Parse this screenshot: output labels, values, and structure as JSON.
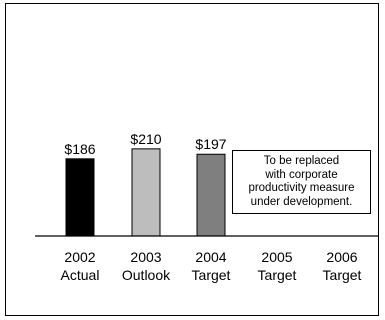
{
  "chart_data": {
    "type": "bar",
    "categories": [
      {
        "line1": "2002",
        "line2": "Actual"
      },
      {
        "line1": "2003",
        "line2": "Outlook"
      },
      {
        "line1": "2004",
        "line2": "Target"
      },
      {
        "line1": "2005",
        "line2": "Target"
      },
      {
        "line1": "2006",
        "line2": "Target"
      }
    ],
    "values": [
      186,
      210,
      197,
      null,
      null
    ],
    "value_labels": [
      "$186",
      "$210",
      "$197",
      "",
      ""
    ],
    "bar_colors": [
      "#000000",
      "#bdbdbd",
      "#7f7f7f",
      "",
      ""
    ],
    "ylim": [
      0,
      300
    ],
    "grid": false,
    "legend": "none",
    "title": "",
    "xlabel": "",
    "ylabel": "",
    "annotation": {
      "lines": [
        "To be replaced",
        "with corporate",
        "productivity measure",
        "under development."
      ]
    }
  }
}
